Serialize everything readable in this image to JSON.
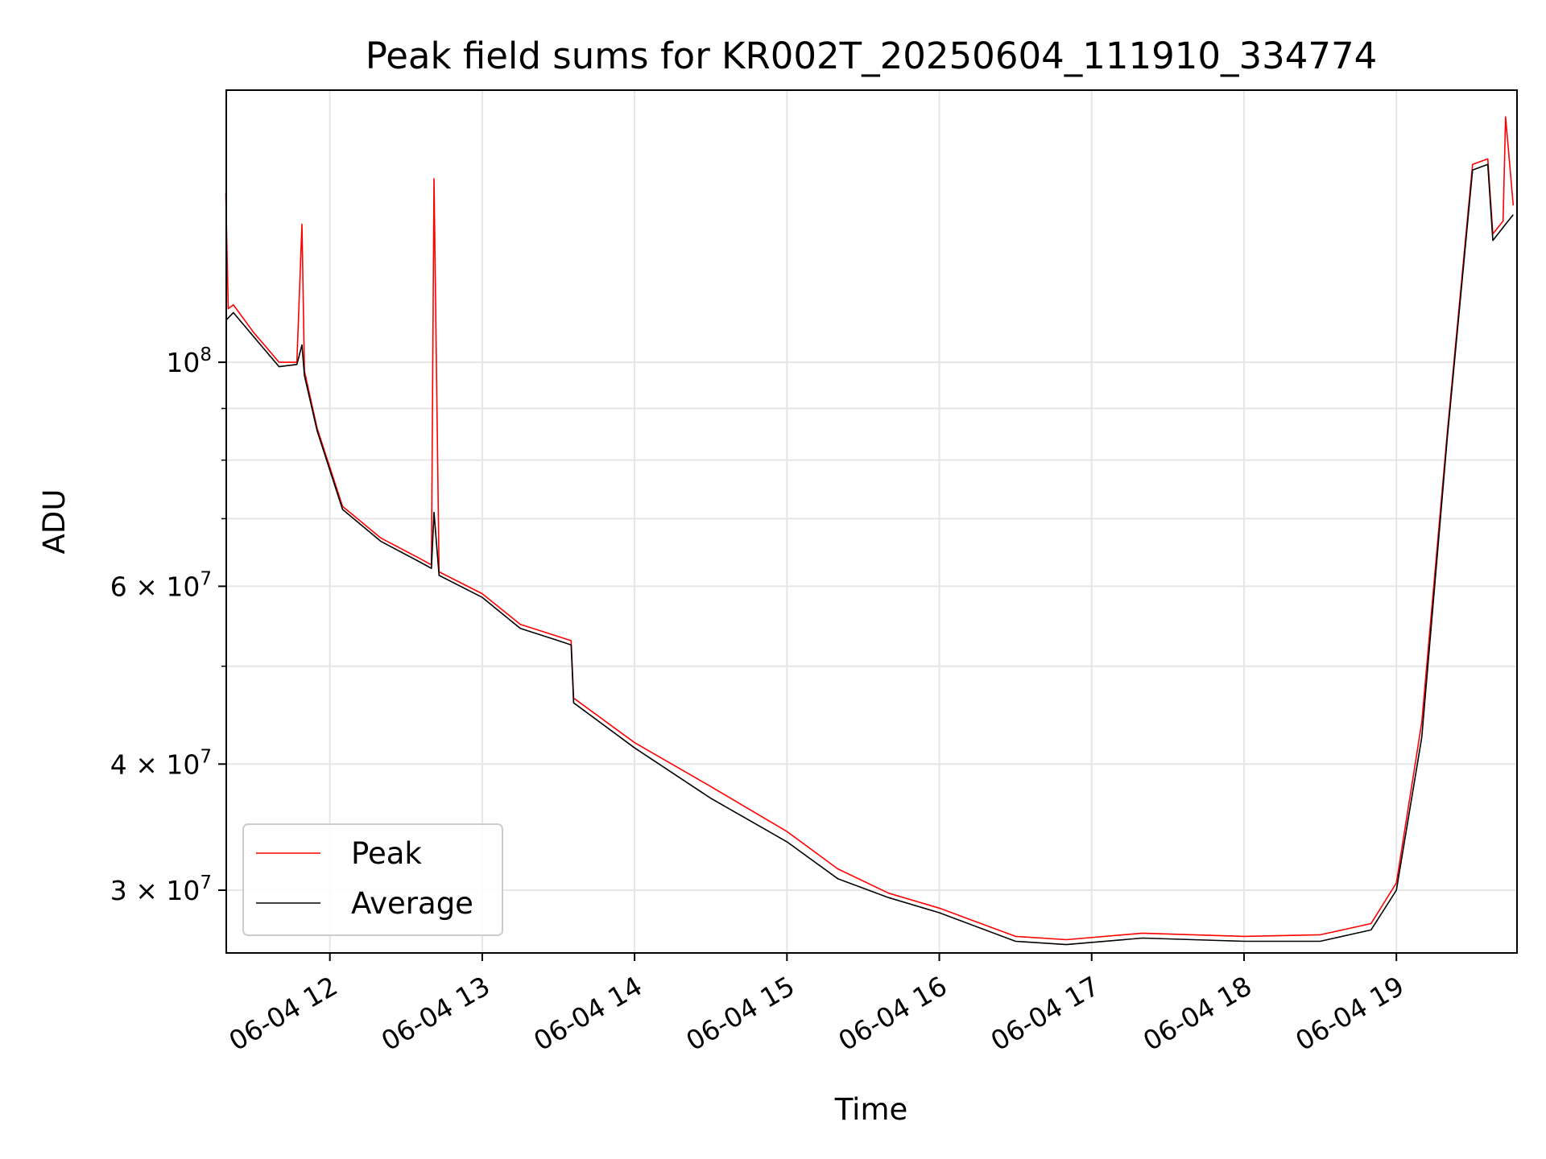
{
  "chart_data": {
    "type": "line",
    "title": "Peak field sums for KR002T_20250604_111910_334774",
    "xlabel": "Time",
    "ylabel": "ADU",
    "yscale": "log",
    "grid": true,
    "legend_position": "lower-left",
    "x_tick_labels": [
      "06-04 12",
      "06-04 13",
      "06-04 14",
      "06-04 15",
      "06-04 16",
      "06-04 17",
      "06-04 18",
      "06-04 19"
    ],
    "y_tick_labels": [
      {
        "value": 100000000,
        "base": "10",
        "exp": "8"
      },
      {
        "value": 60000000,
        "coef": "6",
        "times": "×",
        "base": "10",
        "exp": "7"
      },
      {
        "value": 40000000,
        "coef": "4",
        "times": "×",
        "base": "10",
        "exp": "7"
      },
      {
        "value": 30000000,
        "coef": "3",
        "times": "×",
        "base": "10",
        "exp": "7"
      }
    ],
    "series": [
      {
        "name": "Peak",
        "color": "#ff0000",
        "x": [
          "2025-06-04 11:19",
          "2025-06-04 11:20",
          "2025-06-04 11:22",
          "2025-06-04 11:30",
          "2025-06-04 11:40",
          "2025-06-04 11:47",
          "2025-06-04 11:49",
          "2025-06-04 11:50",
          "2025-06-04 11:55",
          "2025-06-04 12:05",
          "2025-06-04 12:20",
          "2025-06-04 12:35",
          "2025-06-04 12:40",
          "2025-06-04 12:41",
          "2025-06-04 12:43",
          "2025-06-04 13:00",
          "2025-06-04 13:15",
          "2025-06-04 13:30",
          "2025-06-04 13:35",
          "2025-06-04 13:36",
          "2025-06-04 14:00",
          "2025-06-04 14:30",
          "2025-06-04 15:00",
          "2025-06-04 15:20",
          "2025-06-04 15:40",
          "2025-06-04 16:00",
          "2025-06-04 16:30",
          "2025-06-04 16:50",
          "2025-06-04 17:20",
          "2025-06-04 18:00",
          "2025-06-04 18:30",
          "2025-06-04 18:50",
          "2025-06-04 19:00",
          "2025-06-04 19:10",
          "2025-06-04 19:20",
          "2025-06-04 19:30",
          "2025-06-04 19:36",
          "2025-06-04 19:38",
          "2025-06-04 19:42",
          "2025-06-04 19:43",
          "2025-06-04 19:46"
        ],
        "y": [
          147000000,
          113000000,
          114000000,
          107000000,
          100000000,
          100000000,
          137000000,
          98000000,
          86000000,
          72000000,
          67000000,
          64000000,
          63000000,
          152000000,
          62000000,
          59000000,
          55000000,
          53500000,
          53000000,
          46500000,
          42000000,
          38000000,
          34300000,
          31500000,
          29800000,
          28800000,
          27000000,
          26800000,
          27200000,
          27000000,
          27100000,
          27800000,
          30500000,
          44000000,
          85000000,
          157000000,
          159000000,
          134000000,
          138000000,
          175000000,
          143000000
        ]
      },
      {
        "name": "Average",
        "color": "#000000",
        "x": [
          "2025-06-04 11:19",
          "2025-06-04 11:22",
          "2025-06-04 11:30",
          "2025-06-04 11:40",
          "2025-06-04 11:47",
          "2025-06-04 11:49",
          "2025-06-04 11:50",
          "2025-06-04 11:55",
          "2025-06-04 12:05",
          "2025-06-04 12:20",
          "2025-06-04 12:35",
          "2025-06-04 12:40",
          "2025-06-04 12:41",
          "2025-06-04 12:43",
          "2025-06-04 13:00",
          "2025-06-04 13:15",
          "2025-06-04 13:30",
          "2025-06-04 13:35",
          "2025-06-04 13:36",
          "2025-06-04 14:00",
          "2025-06-04 14:30",
          "2025-06-04 15:00",
          "2025-06-04 15:20",
          "2025-06-04 15:40",
          "2025-06-04 16:00",
          "2025-06-04 16:30",
          "2025-06-04 16:50",
          "2025-06-04 17:20",
          "2025-06-04 18:00",
          "2025-06-04 18:30",
          "2025-06-04 18:50",
          "2025-06-04 19:00",
          "2025-06-04 19:10",
          "2025-06-04 19:20",
          "2025-06-04 19:30",
          "2025-06-04 19:36",
          "2025-06-04 19:38",
          "2025-06-04 19:42",
          "2025-06-04 19:43",
          "2025-06-04 19:46"
        ],
        "y": [
          110000000,
          112000000,
          106000000,
          99000000,
          99500000,
          104000000,
          97000000,
          85500000,
          71500000,
          66500000,
          63500000,
          62500000,
          71000000,
          61500000,
          58500000,
          54500000,
          53000000,
          52500000,
          46000000,
          41500000,
          37000000,
          33500000,
          30800000,
          29500000,
          28500000,
          26700000,
          26500000,
          26900000,
          26700000,
          26700000,
          27400000,
          30000000,
          42500000,
          84000000,
          155000000,
          157000000,
          132000000,
          136000000,
          137000000,
          140000000
        ]
      }
    ]
  }
}
